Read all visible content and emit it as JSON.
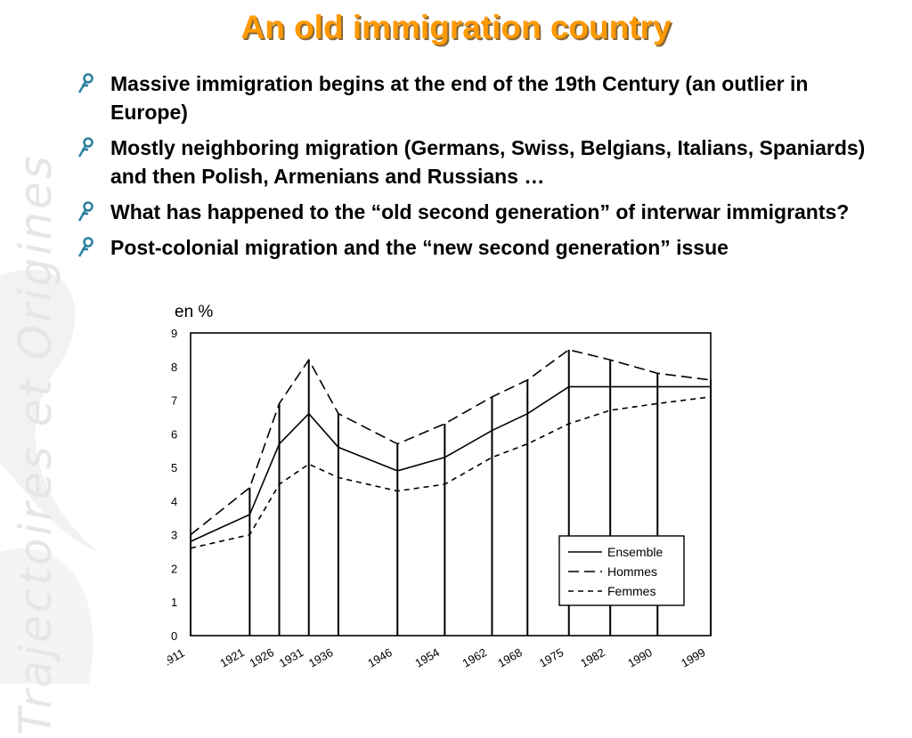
{
  "slide": {
    "title": "An old immigration country",
    "watermark": "Trajectoires et Origines",
    "bullets": [
      "Massive immigration begins at the end of the 19th Century (an outlier in Europe)",
      "Mostly neighboring migration (Germans, Swiss, Belgians, Italians, Spaniards) and then Polish, Armenians and Russians …",
      "What has happened to the “old second generation” of interwar immigrants?",
      "Post-colonial migration and the “new second generation” issue"
    ],
    "colors": {
      "title": "#ff9900",
      "bullet_icon": "#2a7fa0",
      "text": "#000000"
    },
    "icons": {
      "bullet": "stylized-person-icon"
    }
  },
  "chart_data": {
    "type": "line",
    "title": "",
    "ylabel": "en %",
    "xlabel": "",
    "x": [
      1911,
      1921,
      1926,
      1931,
      1936,
      1946,
      1954,
      1962,
      1968,
      1975,
      1982,
      1990,
      1999
    ],
    "x_tick_labels": [
      "1911",
      "1921",
      "1926",
      "1931",
      "1936",
      "1946",
      "1954",
      "1962",
      "1968",
      "1975",
      "1982",
      "1990",
      "1999"
    ],
    "y_tick_labels": [
      "0",
      "1",
      "2",
      "3",
      "4",
      "5",
      "6",
      "7",
      "8",
      "9"
    ],
    "ylim": [
      0,
      9
    ],
    "grid": false,
    "vertical_markers_at_years": true,
    "legend_position": "bottom-right",
    "series": [
      {
        "name": "Ensemble",
        "style": "solid",
        "values": [
          2.8,
          3.6,
          5.7,
          6.6,
          5.6,
          4.9,
          5.3,
          6.1,
          6.6,
          7.4,
          7.4,
          7.4,
          7.4
        ]
      },
      {
        "name": "Hommes",
        "style": "long-dash",
        "values": [
          3.0,
          4.4,
          6.9,
          8.2,
          6.6,
          5.7,
          6.3,
          7.1,
          7.6,
          8.5,
          8.2,
          7.8,
          7.6
        ]
      },
      {
        "name": "Femmes",
        "style": "short-dash",
        "values": [
          2.6,
          3.0,
          4.5,
          5.1,
          4.7,
          4.3,
          4.5,
          5.3,
          5.7,
          6.3,
          6.7,
          6.9,
          7.1
        ]
      }
    ]
  }
}
